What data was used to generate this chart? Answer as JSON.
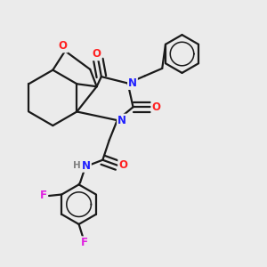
{
  "bg_color": "#ebebeb",
  "bond_color": "#1a1a1a",
  "N_color": "#2020ff",
  "O_color": "#ff2020",
  "F_color": "#e020e0",
  "H_color": "#808080",
  "line_width": 1.6,
  "font_size": 8.5,
  "figsize": [
    3.0,
    3.0
  ],
  "dpi": 100,
  "xlim": [
    0.0,
    1.0
  ],
  "ylim": [
    0.0,
    1.0
  ]
}
